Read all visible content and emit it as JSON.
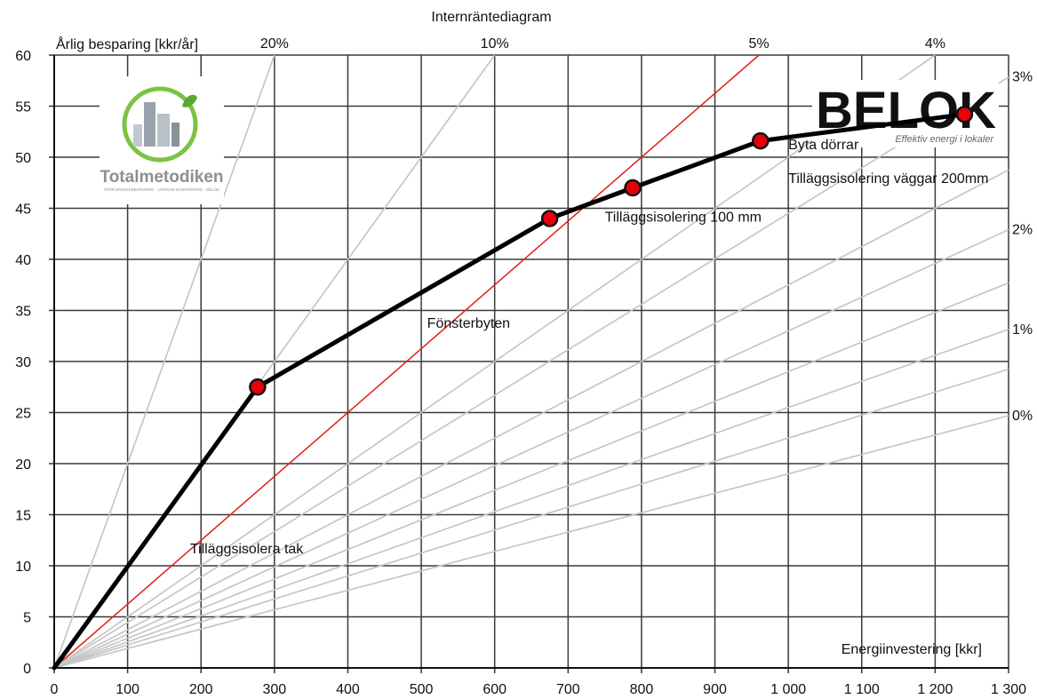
{
  "chart_data": {
    "type": "line",
    "title": "Internräntediagram",
    "ylabel": "Årlig besparing [kkr/år]",
    "xlabel": "Energiinvestering [kkr]",
    "xlim": [
      0,
      1300
    ],
    "ylim": [
      0,
      60
    ],
    "x_ticks": [
      "0",
      "100",
      "200",
      "300",
      "400",
      "500",
      "600",
      "700",
      "800",
      "900",
      "1 000",
      "1 100",
      "1 200",
      "1 300"
    ],
    "y_ticks": [
      "0",
      "5",
      "10",
      "15",
      "20",
      "25",
      "30",
      "35",
      "40",
      "45",
      "50",
      "55",
      "60"
    ],
    "grid": true,
    "rate_lines": [
      {
        "label": "20%",
        "slope": 0.2
      },
      {
        "label": "10%",
        "slope": 0.1
      },
      {
        "label": "5%",
        "slope": 0.0625,
        "highlight": true
      },
      {
        "label": "4%",
        "slope": 0.05
      },
      {
        "label": "3%",
        "slope": 0.0445
      },
      {
        "label": "",
        "slope": 0.0375
      },
      {
        "label": "2%",
        "slope": 0.033
      },
      {
        "label": "",
        "slope": 0.029
      },
      {
        "label": "1%",
        "slope": 0.0255
      },
      {
        "label": "",
        "slope": 0.0225
      },
      {
        "label": "0%",
        "slope": 0.019
      }
    ],
    "series": [
      {
        "points": [
          {
            "x": 0,
            "y": 0
          },
          {
            "x": 277,
            "y": 27.5
          },
          {
            "x": 675,
            "y": 44
          },
          {
            "x": 788,
            "y": 47
          },
          {
            "x": 962,
            "y": 51.6
          },
          {
            "x": 1240,
            "y": 54.2
          }
        ]
      }
    ],
    "annotations": [
      {
        "text": "Tilläggsisolera tak",
        "x": 185,
        "y": 11.2
      },
      {
        "text": "Fönsterbyten",
        "x": 508,
        "y": 33.3
      },
      {
        "text": "Tilläggsisolering 100 mm",
        "x": 750,
        "y": 43.7
      },
      {
        "text": "Tilläggsisolering väggar 200mm",
        "x": 1000,
        "y": 47.5
      },
      {
        "text": "Byta dörrar",
        "x": 1000,
        "y": 50.8
      }
    ]
  },
  "logos": {
    "left": {
      "name": "Totalmetodiken",
      "tagline": "STOR ENERGIBESPARING · LÖNSAM INVESTERING · BELOK"
    },
    "right": {
      "name": "BELOK",
      "tagline": "Effektiv energi i lokaler"
    }
  },
  "colors": {
    "series": "#000000",
    "marker": "#e8000b",
    "highlight_line": "#e0201a",
    "rate_line": "#c6c6c6",
    "grid": "#3a3a3a"
  }
}
